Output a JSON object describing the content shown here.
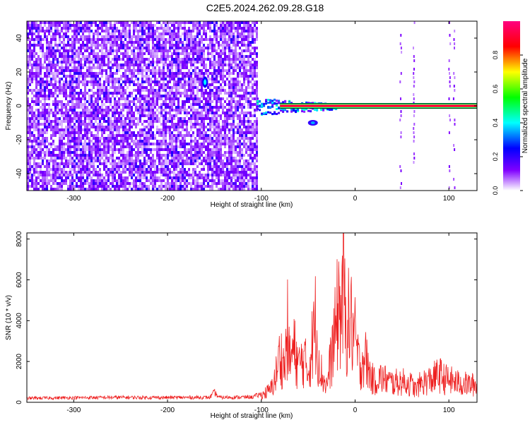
{
  "figure": {
    "title": "C2E5.2024.262.09.28.G18"
  },
  "chart_data": [
    {
      "type": "heatmap",
      "title": "C2E5.2024.262.09.28.G18",
      "xlabel": "Height of straight line (km)",
      "ylabel": "Frequency (Hz)",
      "xlim": [
        -350,
        130
      ],
      "ylim": [
        -50,
        50
      ],
      "xticks": [
        -300,
        -200,
        -100,
        0,
        100
      ],
      "yticks": [
        -40,
        -20,
        0,
        20,
        40
      ],
      "grid": false,
      "colorbar": {
        "label": "Normalized spectral amplitude",
        "range": [
          0,
          1
        ],
        "ticks": [
          0.0,
          0.2,
          0.4,
          0.6,
          0.8
        ],
        "colors": [
          "#ffffff",
          "#8000ff",
          "#0000ff",
          "#00ffff",
          "#00ff00",
          "#ffff00",
          "#ff0000",
          "#ff0080"
        ]
      },
      "features": {
        "noise_region_x": [
          -350,
          -105
        ],
        "carrier_line_x": [
          -105,
          130
        ],
        "carrier_frequency": 0,
        "carrier_amplitude": 0.95,
        "side_blob": {
          "x": -45,
          "y": -10
        },
        "spike": {
          "x": -160,
          "y": 14
        },
        "vertical_streaks_x": [
          48,
          62,
          100,
          105
        ]
      }
    },
    {
      "type": "line",
      "xlabel": "Height of straight line (km)",
      "ylabel": "SNR (10 * v/v)",
      "xlim": [
        -350,
        130
      ],
      "ylim": [
        0,
        8300
      ],
      "xticks": [
        -300,
        -200,
        -100,
        0,
        100
      ],
      "yticks": [
        0,
        2000,
        4000,
        6000,
        8000
      ],
      "grid": false,
      "series": [
        {
          "color": "#ee2020",
          "x": [
            -350,
            -300,
            -250,
            -200,
            -155,
            -150,
            -145,
            -110,
            -100,
            -95,
            -90,
            -85,
            -80,
            -75,
            -72,
            -70,
            -65,
            -60,
            -55,
            -50,
            -45,
            -42,
            -40,
            -35,
            -30,
            -25,
            -20,
            -18,
            -15,
            -12,
            -10,
            -5,
            0,
            5,
            10,
            15,
            20,
            25,
            30,
            40,
            50,
            60,
            65,
            70,
            80,
            90,
            95,
            100,
            110,
            120,
            130
          ],
          "y": [
            250,
            280,
            300,
            290,
            300,
            600,
            300,
            320,
            500,
            700,
            900,
            1800,
            3500,
            2500,
            5300,
            3000,
            3800,
            2600,
            3200,
            2200,
            4500,
            5900,
            4000,
            1800,
            1200,
            3500,
            5500,
            7200,
            6500,
            8200,
            5500,
            6000,
            4500,
            2500,
            3500,
            2200,
            1500,
            1800,
            1700,
            1400,
            1500,
            1300,
            900,
            1400,
            1600,
            2000,
            1700,
            1600,
            1400,
            1300,
            1250
          ]
        }
      ]
    }
  ]
}
